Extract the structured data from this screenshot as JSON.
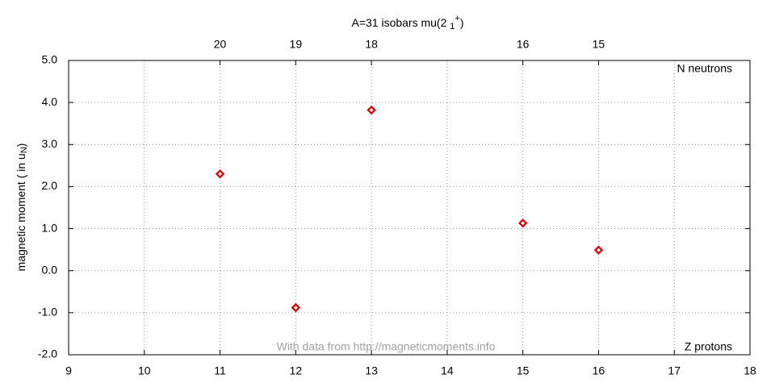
{
  "chart_data": {
    "type": "scatter",
    "title": [
      "A=31 isobars mu(2 ",
      "1",
      "+",
      ")"
    ],
    "y_label": [
      "magnetic moment ( in u",
      "N",
      ")"
    ],
    "annotations": [
      "N neutrons",
      "Z protons",
      "With data from http://magneticmoments.info"
    ],
    "x": [
      11,
      12,
      13,
      15,
      16
    ],
    "values": [
      2.3,
      -0.88,
      3.82,
      1.13,
      0.49
    ],
    "color": "#e00000",
    "xlim": [
      9,
      18
    ],
    "xticks": [
      9,
      10,
      11,
      12,
      13,
      14,
      15,
      16,
      17,
      18
    ],
    "x2ticks": [
      {
        "value": 11,
        "label": "20"
      },
      {
        "value": 12,
        "label": "19"
      },
      {
        "value": 13,
        "label": "18"
      },
      {
        "value": 15,
        "label": "16"
      },
      {
        "value": 16,
        "label": "15"
      }
    ],
    "ylim": [
      -2,
      5
    ],
    "yticks": [
      {
        "value": -2,
        "label": "-2.0"
      },
      {
        "value": -1,
        "label": "-1.0"
      },
      {
        "value": 0,
        "label": "0.0"
      },
      {
        "value": 1,
        "label": "1.0"
      },
      {
        "value": 2,
        "label": "2.0"
      },
      {
        "value": 3,
        "label": "3.0"
      },
      {
        "value": 4,
        "label": "4.0"
      },
      {
        "value": 5,
        "label": "5.0"
      }
    ],
    "grid": true
  }
}
